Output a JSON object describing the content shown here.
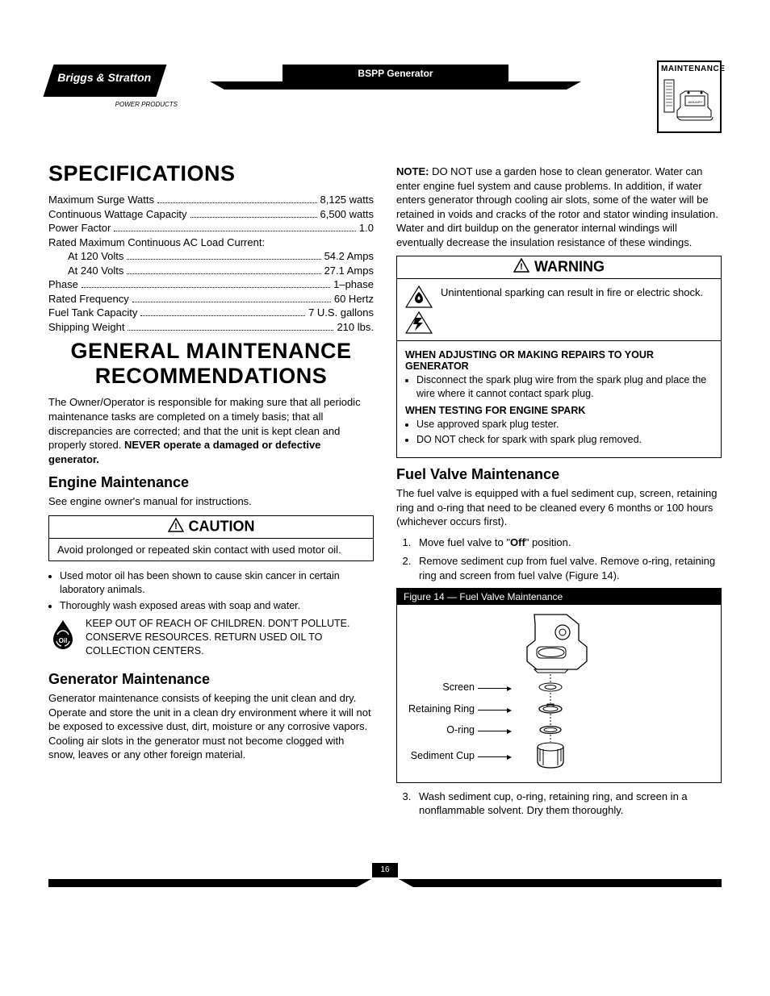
{
  "header": {
    "brand": "Briggs & Stratton",
    "brand_sub": "POWER PRODUCTS",
    "doc_title": "BSPP Generator",
    "badge_title": "MAINTENANCE",
    "badge_month": "JANUARY"
  },
  "specs": {
    "heading": "SPECIFICATIONS",
    "lines": [
      {
        "label": "Maximum Surge Watts",
        "value": "8,125 watts",
        "indent": false
      },
      {
        "label": "Continuous Wattage Capacity",
        "value": "6,500 watts",
        "indent": false
      },
      {
        "label": "Power Factor",
        "value": "1.0",
        "indent": false
      },
      {
        "label": "Rated Maximum Continuous AC Load Current:",
        "value": "",
        "indent": false,
        "no_dots": true
      },
      {
        "label": "At 120 Volts",
        "value": "54.2 Amps",
        "indent": true
      },
      {
        "label": "At 240 Volts",
        "value": "27.1 Amps",
        "indent": true
      },
      {
        "label": "Phase",
        "value": "1–phase",
        "indent": false
      },
      {
        "label": "Rated Frequency",
        "value": "60 Hertz",
        "indent": false
      },
      {
        "label": "Fuel Tank Capacity",
        "value": "7 U.S. gallons",
        "indent": false
      },
      {
        "label": "Shipping Weight",
        "value": "210 lbs.",
        "indent": false
      }
    ]
  },
  "gen_maint": {
    "heading": "GENERAL MAINTENANCE RECOMMENDATIONS",
    "intro_pre": "The Owner/Operator is responsible for making sure that all periodic maintenance tasks are completed on a timely basis; that all discrepancies are corrected; and that the unit is kept clean and properly stored. ",
    "intro_bold": "NEVER operate a damaged or defective generator."
  },
  "engine": {
    "heading": "Engine Maintenance",
    "see": "See engine owner's manual for instructions.",
    "caution_title": "CAUTION",
    "caution_body": "Avoid prolonged or repeated skin contact with used motor oil.",
    "caution_bullets": [
      "Used motor oil has been shown to cause skin cancer in certain laboratory animals.",
      "Thoroughly wash exposed areas with soap and water."
    ],
    "keep_out": "KEEP OUT OF REACH OF CHILDREN. DON'T POLLUTE. CONSERVE RESOURCES. RETURN USED OIL TO COLLECTION CENTERS."
  },
  "generator": {
    "heading": "Generator Maintenance",
    "body": "Generator maintenance consists of keeping the unit clean and dry. Operate and store the unit in a clean dry environment where it will not be exposed to excessive dust, dirt, moisture or any corrosive vapors. Cooling air slots in the generator must not become clogged with snow, leaves or any other foreign material."
  },
  "note": {
    "label": "NOTE:",
    "body": " DO NOT use a garden hose to clean generator. Water can enter engine fuel system and cause problems. In addition, if water enters generator through cooling air slots, some of the water will be retained in voids and cracks of the rotor and stator winding insulation. Water and dirt buildup on the generator internal windings will eventually decrease the insulation resistance of these windings."
  },
  "warning": {
    "title": "WARNING",
    "body": "Unintentional sparking can result in fire or electric shock.",
    "sub1_title": "WHEN ADJUSTING OR MAKING REPAIRS TO YOUR GENERATOR",
    "sub1_items": [
      "Disconnect the spark plug wire from the spark plug and place the wire where it cannot contact spark plug."
    ],
    "sub2_title": "WHEN TESTING FOR ENGINE SPARK",
    "sub2_items": [
      "Use approved spark plug tester.",
      "DO NOT check for spark with spark plug removed."
    ]
  },
  "fuel": {
    "heading": "Fuel Valve Maintenance",
    "intro": "The fuel valve is equipped with a fuel sediment cup, screen, retaining ring and o-ring that need to be cleaned every 6 months or 100 hours (whichever occurs first).",
    "steps12": [
      "Move fuel valve to \"Off\" position.",
      "Remove sediment cup from fuel valve. Remove o-ring, retaining ring and screen from fuel valve (Figure 14)."
    ],
    "step1_off": "Off",
    "figure_title": "Figure 14 — Fuel Valve Maintenance",
    "labels": {
      "screen": "Screen",
      "ring": "Retaining Ring",
      "oring": "O-ring",
      "cup": "Sediment Cup"
    },
    "step3": "Wash sediment cup, o-ring, retaining ring, and screen in a nonflammable solvent. Dry them thoroughly."
  },
  "page_number": "16",
  "colors": {
    "text": "#000000",
    "bg": "#ffffff",
    "header_bg": "#000000"
  }
}
